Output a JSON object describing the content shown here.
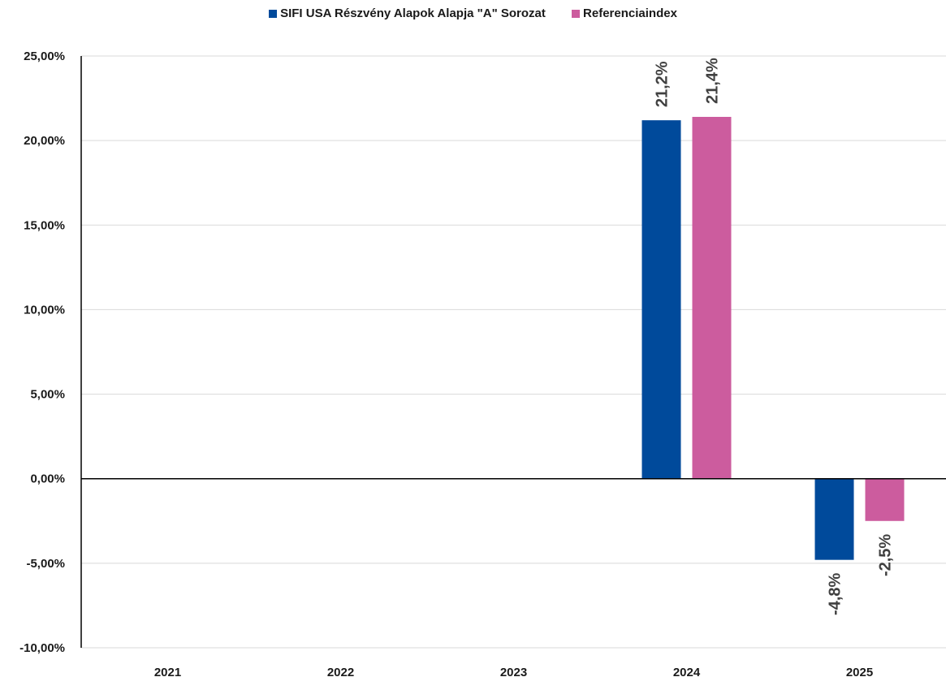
{
  "chart_data": {
    "type": "bar",
    "categories": [
      "2021",
      "2022",
      "2023",
      "2024",
      "2025"
    ],
    "series": [
      {
        "name": "SIFI USA Részvény Alapok Alapja \"A\" Sorozat",
        "color": "#004a9b",
        "values": [
          null,
          null,
          null,
          21.2,
          -4.8
        ],
        "labels": [
          null,
          null,
          null,
          "21,2%",
          "-4,8%"
        ]
      },
      {
        "name": "Referenciaindex",
        "color": "#cc5c9e",
        "values": [
          null,
          null,
          null,
          21.4,
          -2.5
        ],
        "labels": [
          null,
          null,
          null,
          "21,4%",
          "-2,5%"
        ]
      }
    ],
    "ylim": [
      -10,
      25
    ],
    "yticks": [
      25,
      20,
      15,
      10,
      5,
      0,
      -5,
      -10
    ],
    "ytick_labels": [
      "25,00%",
      "20,00%",
      "15,00%",
      "10,00%",
      "5,00%",
      "0,00%",
      "-5,00%",
      "-10,00%"
    ],
    "grid": true,
    "legend_position": "top-center",
    "title": "",
    "xlabel": "",
    "ylabel": ""
  }
}
